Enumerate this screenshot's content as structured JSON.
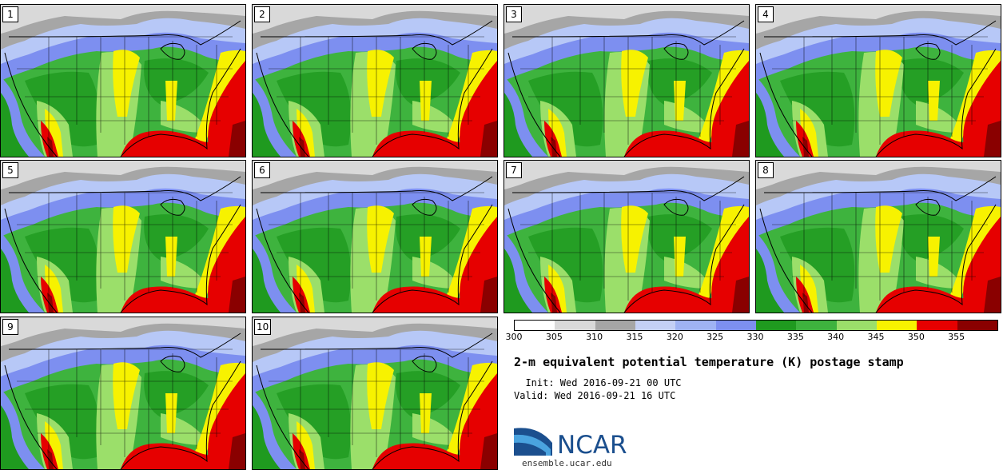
{
  "panels": [
    {
      "label": "1"
    },
    {
      "label": "2"
    },
    {
      "label": "3"
    },
    {
      "label": "4"
    },
    {
      "label": "5"
    },
    {
      "label": "6"
    },
    {
      "label": "7"
    },
    {
      "label": "8"
    },
    {
      "label": "9"
    },
    {
      "label": "10"
    }
  ],
  "colorbar": {
    "ticks": [
      "300",
      "305",
      "310",
      "315",
      "320",
      "325",
      "330",
      "335",
      "340",
      "345",
      "350",
      "355"
    ],
    "colors": [
      "#ffffff",
      "#d9d9d9",
      "#a6a6a6",
      "#c4d0f5",
      "#9fb3f3",
      "#7d8ff0",
      "#1f9a1f",
      "#3eb33e",
      "#9bdf6a",
      "#f7f200",
      "#e60000",
      "#8a0000"
    ]
  },
  "map_colors": {
    "ocean_light": "#b7c8f7",
    "ocean_blue": "#7d8ff0",
    "gray_light": "#d9d9d9",
    "gray_mid": "#a6a6a6",
    "green_dark": "#1f9a1f",
    "green": "#3eb33e",
    "green_light": "#9bdf6a",
    "yellow": "#f7f200",
    "red": "#e60000",
    "dark_red": "#8a0000"
  },
  "title": "2-m equivalent potential temperature (K) postage stamp",
  "init": "  Init: Wed 2016-09-21 00 UTC",
  "valid": "Valid: Wed 2016-09-21 16 UTC",
  "logo": {
    "text": "NCAR",
    "url": "ensemble.ucar.edu"
  }
}
